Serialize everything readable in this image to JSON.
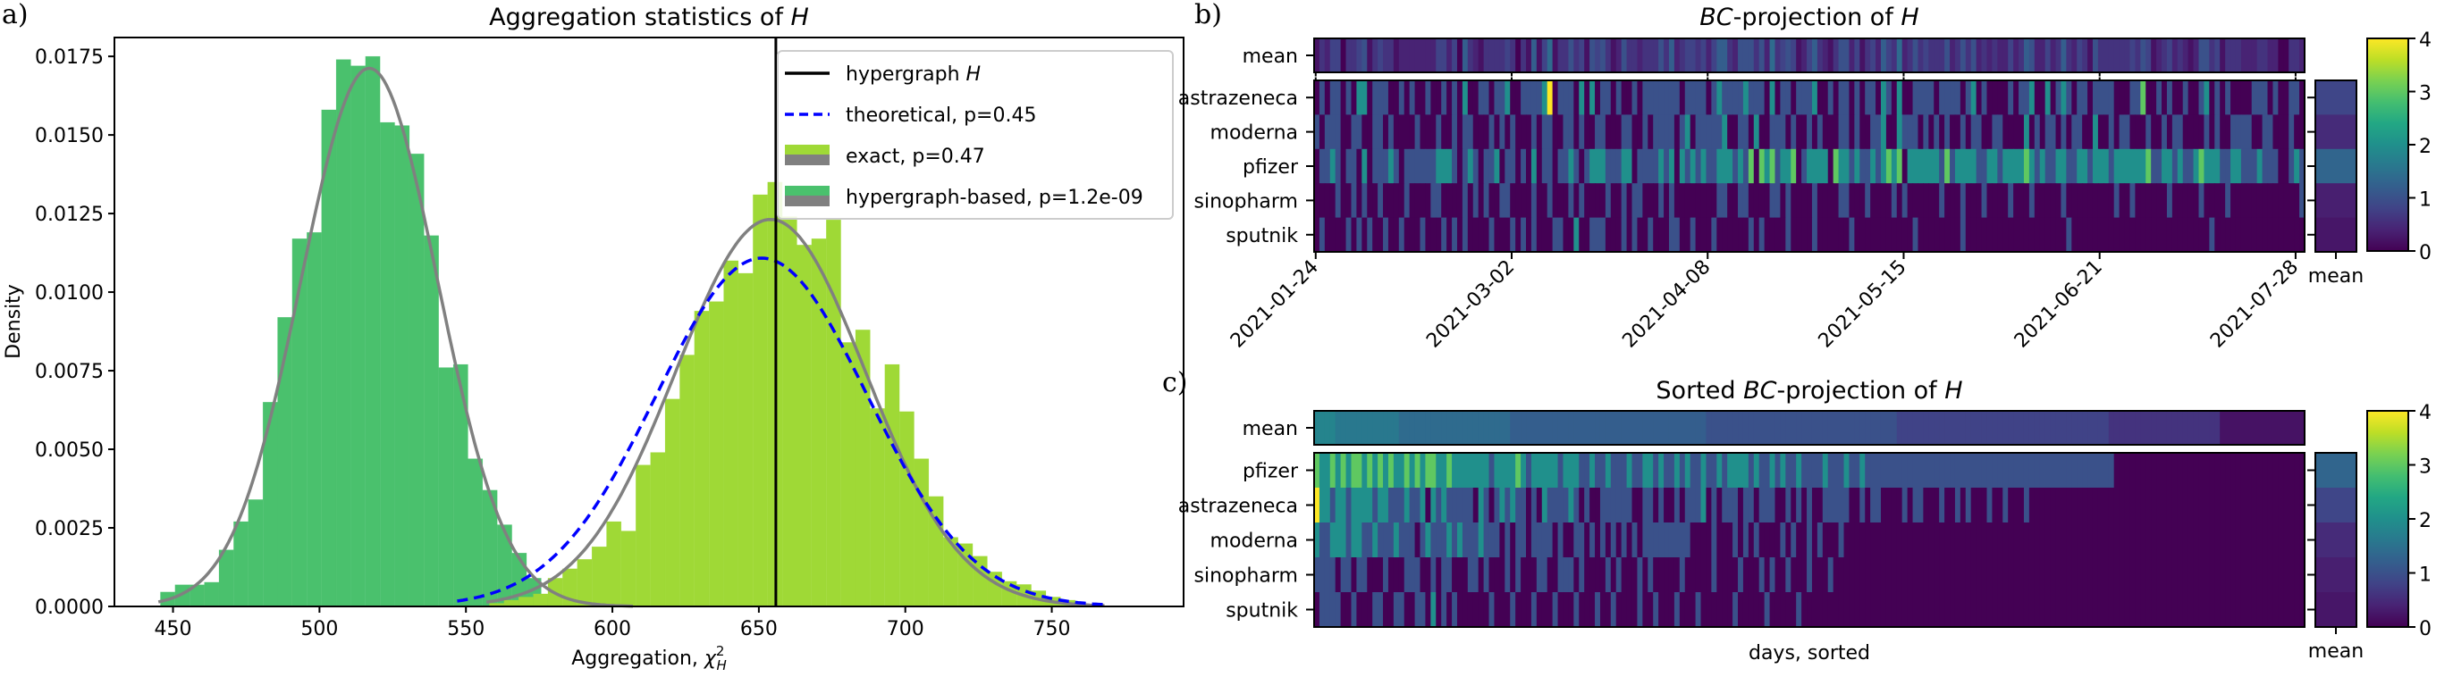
{
  "panels": {
    "a": {
      "letter": "a)",
      "title_prefix": "Aggregation statistics of ",
      "title_var": "H"
    },
    "b": {
      "letter": "b)",
      "title_prefix": "-projection of ",
      "title_em": "BC",
      "title_var": "H"
    },
    "c": {
      "letter": "c)",
      "title_pre": "Sorted ",
      "title_em": "BC",
      "title_prefix": "-projection of ",
      "title_var": "H"
    }
  },
  "chart_data": [
    {
      "id": "a",
      "type": "histogram",
      "title": "Aggregation statistics of H",
      "xlabel": "Aggregation, χ²_H",
      "xlabel_main": "Aggregation, ",
      "xlabel_sym": "χ",
      "xlabel_sup": "2",
      "xlabel_sub": "H",
      "ylabel": "Density",
      "xlim": [
        430,
        795
      ],
      "ylim": [
        0,
        0.0181
      ],
      "xticks": [
        450,
        500,
        550,
        600,
        650,
        700,
        750
      ],
      "yticks": [
        "0.0000",
        "0.0025",
        "0.0050",
        "0.0075",
        "0.0100",
        "0.0125",
        "0.0150",
        "0.0175"
      ],
      "observed_value": 655.8,
      "legend": [
        {
          "label_pre": "hypergraph ",
          "label_em": "H",
          "kind": "line",
          "color": "#000000"
        },
        {
          "label_pre": "theoretical, p=0.45",
          "label_em": "",
          "kind": "dashed",
          "color": "#0000ff"
        },
        {
          "label_pre": "exact, p=0.47",
          "label_em": "",
          "kind": "patch",
          "color": "#9fd936"
        },
        {
          "label_pre": "hypergraph-based, p=1.2e-09",
          "label_em": "",
          "kind": "patch",
          "color": "#4ac16d"
        }
      ],
      "legend_location": "top-right",
      "series": [
        {
          "name": "hypergraph-based, p=1.2e-09",
          "color": "#4ac16d",
          "bin_start": 445.7,
          "bin_width": 5.0,
          "values": [
            0.00046,
            0.00069,
            0.00069,
            0.00077,
            0.0018,
            0.0027,
            0.0034,
            0.0065,
            0.0092,
            0.0117,
            0.0119,
            0.0158,
            0.0174,
            0.0172,
            0.0175,
            0.0154,
            0.0153,
            0.0144,
            0.0118,
            0.0076,
            0.0077,
            0.0047,
            0.0037,
            0.0026,
            0.0017,
            0.0009,
            0.0003
          ]
        },
        {
          "name": "exact, p=0.47",
          "color": "#9fd936",
          "bin_start": 558.0,
          "bin_width": 5.0,
          "values": [
            0.0001,
            0.0002,
            0.0003,
            0.0004,
            0.0009,
            0.0012,
            0.0015,
            0.0019,
            0.0027,
            0.0024,
            0.0045,
            0.0049,
            0.0066,
            0.008,
            0.0094,
            0.0097,
            0.011,
            0.0106,
            0.0131,
            0.0135,
            0.0124,
            0.0115,
            0.0117,
            0.0123,
            0.0084,
            0.0088,
            0.0063,
            0.0077,
            0.0062,
            0.0047,
            0.0035,
            0.0022,
            0.002,
            0.0016,
            0.0011,
            0.0008,
            0.0007,
            0.0005,
            0.0003,
            0.0002
          ]
        }
      ],
      "curves": [
        {
          "name": "hypergraph-based fit",
          "kind": "normal",
          "mean": 517,
          "sd": 23.3,
          "color": "#808080",
          "x_range": [
            445,
            607
          ]
        },
        {
          "name": "exact fit",
          "kind": "normal",
          "mean": 654,
          "sd": 32.4,
          "color": "#808080",
          "x_range": [
            557,
            768
          ]
        },
        {
          "name": "theoretical, p=0.45",
          "kind": "normal",
          "mean": 651,
          "sd": 36.0,
          "color": "#0000ff",
          "dashed": true,
          "x_range": [
            547,
            768
          ]
        }
      ]
    },
    {
      "id": "b",
      "type": "heatmap",
      "title": "BC-projection of H",
      "colormap": "viridis",
      "vmin": 0,
      "vmax": 4,
      "rows": [
        "astrazeneca",
        "moderna",
        "pfizer",
        "sinopharm",
        "sputnik"
      ],
      "mean_row_label": "mean",
      "mean_col_label": "mean",
      "n_days": 187,
      "xticks": [
        "2021-01-24",
        "2021-03-02",
        "2021-04-08",
        "2021-05-15",
        "2021-06-21",
        "2021-07-28"
      ],
      "xtick_days": [
        0,
        37,
        74,
        111,
        148,
        185
      ],
      "cbar_ticks": [
        "0",
        "1",
        "2",
        "3",
        "4"
      ],
      "row_means": [
        0.85,
        0.5,
        1.3,
        0.35,
        0.25
      ],
      "values": [
        "0101101022011100101001001010200110112001111240111020201101001011111110111101211112111020110111200101101011021020011110111101201000010112002012101101111000113001010010012010100001110100110",
        "1011100110011010000100010010110001010100010110011010011000110010111101201111120011020011101001010001101001120021110101010010110011000020101101011002001011000100101100001010011110011000100101",
        "0112101102011121011111122210121011201101020110112101222111220111121202121211222121303231223012222032212112123230222222131222211221222232121122112212221222222311221211232221122111211100121210",
        "0000100101001000010000110000101010011000010010001010000100101100010100000000110011000011010000100001100010000101000000100010001000010001000001000000000100100000010000010000100000000000001000",
        "0100001010100100100010001010100001000101010001100200111000101001000110010001000000101000010000100000010000000000010000000010000000000000000000100000000000000000000000000100000000000000000000"
      ]
    },
    {
      "id": "c",
      "type": "heatmap",
      "title": "Sorted BC-projection of H",
      "colormap": "viridis",
      "vmin": 0,
      "vmax": 4,
      "rows": [
        "pfizer",
        "astrazeneca",
        "moderna",
        "sinopharm",
        "sputnik"
      ],
      "mean_row_label": "mean",
      "mean_col_label": "mean",
      "xlabel": "days, sorted",
      "cbar_ticks": [
        "0",
        "1",
        "2",
        "3",
        "4"
      ],
      "row_means": [
        1.3,
        0.85,
        0.5,
        0.35,
        0.25
      ],
      "mean_levels": [
        {
          "value": 1.8,
          "days": 4
        },
        {
          "value": 1.6,
          "days": 12
        },
        {
          "value": 1.4,
          "days": 21
        },
        {
          "value": 1.2,
          "days": 37
        },
        {
          "value": 1.0,
          "days": 36
        },
        {
          "value": 0.8,
          "days": 40
        },
        {
          "value": 0.6,
          "days": 21
        },
        {
          "value": 0.2,
          "days": 16
        }
      ],
      "values": [
        "3223232332323232232323322322222221222232122222122211211211121122121121211211212222121121211211112111211211111111111111111111111111111111111111111111111000000000000000000000000000000000000",
        "4221221222212211121120212111110210121211010211112101001111110011010010111201011101101110010101001111100101100001011000100101000100100010000000000000000000000000000000000000000000000000000000",
        "2112221221121112111012111212111211101011011110100110101010101011111111100001000101010000101001010001000000000000000000000000000000000000000000000000000000000000000000000000000000000000000000",
        "1111011011000100011100101100011010001010001100111010000101000101000001000001000010001010010001000100000000000000000000000000000000000000000000000000000000000000000000000000000000000000000000",
        "0111100100011001100110201010000001000100010001000100010010000100100010001000000100000100000100000000000000000000000000000000000000000000000000000000000000000000000000000000000000000000000000"
      ]
    }
  ]
}
